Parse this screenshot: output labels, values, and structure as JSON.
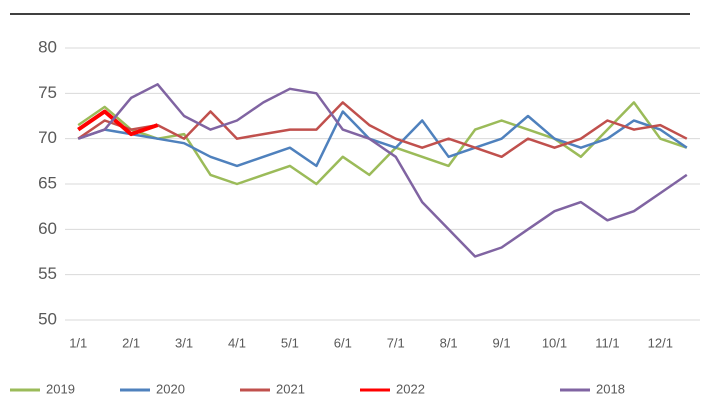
{
  "chart_data": {
    "type": "line",
    "categories": [
      "1/1",
      null,
      "2/1",
      null,
      "3/1",
      null,
      "4/1",
      null,
      "5/1",
      null,
      "6/1",
      null,
      "7/1",
      null,
      "8/1",
      null,
      "9/1",
      null,
      "10/1",
      null,
      "11/1",
      null,
      "12/1",
      null
    ],
    "series": [
      {
        "name": "2019",
        "color": "#9bbb59",
        "values": [
          71.5,
          73.5,
          71,
          70,
          70.5,
          66,
          65,
          66,
          67,
          65,
          68,
          66,
          69,
          68,
          67,
          71,
          72,
          71,
          70,
          68,
          71,
          74,
          70,
          69
        ]
      },
      {
        "name": "2020",
        "color": "#4f81bd",
        "values": [
          70,
          71,
          70.5,
          70,
          69.5,
          68,
          67,
          68,
          69,
          67,
          73,
          70,
          69,
          72,
          68,
          69,
          70,
          72.5,
          70,
          69,
          70,
          72,
          71,
          69
        ]
      },
      {
        "name": "2021",
        "color": "#c0504d",
        "values": [
          70,
          72,
          71,
          71.5,
          70,
          73,
          70,
          70.5,
          71,
          71,
          74,
          71.5,
          70,
          69,
          70,
          69,
          68,
          70,
          69,
          70,
          72,
          71,
          71.5,
          70
        ]
      },
      {
        "name": "2022",
        "color": "#ff0000",
        "values": [
          71,
          73,
          70.5,
          71.5,
          null,
          null,
          null,
          null,
          null,
          null,
          null,
          null,
          null,
          null,
          null,
          null,
          null,
          null,
          null,
          null,
          null,
          null,
          null,
          null
        ]
      },
      {
        "name": "2018",
        "color": "#8064a2",
        "values": [
          70,
          71,
          74.5,
          76,
          72.5,
          71,
          72,
          74,
          75.5,
          75,
          71,
          70,
          68,
          63,
          60,
          57,
          58,
          60,
          62,
          63,
          61,
          62,
          64,
          66
        ]
      }
    ],
    "ylim": [
      50,
      80
    ],
    "yticks": [
      50,
      55,
      60,
      65,
      70,
      75,
      80
    ],
    "grid": true
  }
}
